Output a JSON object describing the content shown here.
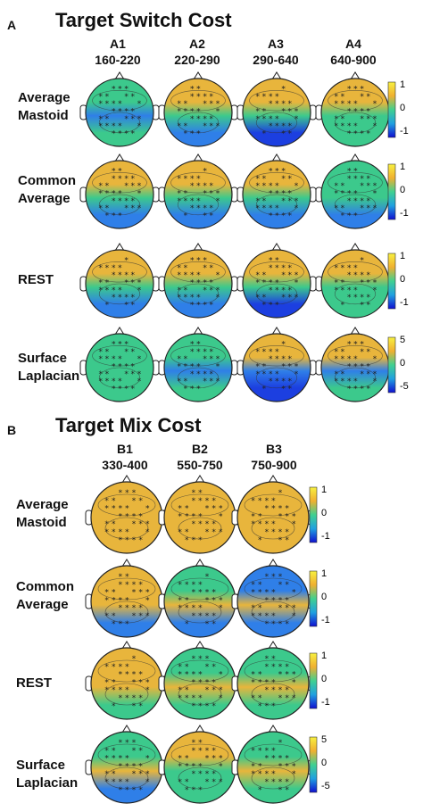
{
  "panels": [
    {
      "letter": "A",
      "title": "Target Switch Cost",
      "columns": [
        {
          "id": "A1",
          "range": "160-220"
        },
        {
          "id": "A2",
          "range": "220-290"
        },
        {
          "id": "A3",
          "range": "290-640"
        },
        {
          "id": "A4",
          "range": "640-900"
        }
      ],
      "rows": [
        {
          "label": [
            "Average",
            "Mastoid"
          ],
          "scale": {
            "max": "1",
            "mid": "0",
            "min": "-1"
          }
        },
        {
          "label": [
            "Common",
            "Average"
          ],
          "scale": {
            "max": "1",
            "mid": "0",
            "min": "-1"
          }
        },
        {
          "label": [
            "REST"
          ],
          "scale": {
            "max": "1",
            "mid": "0",
            "min": "-1"
          }
        },
        {
          "label": [
            "Surface",
            "Laplacian"
          ],
          "scale": {
            "max": "5",
            "mid": "0",
            "min": "-5"
          }
        }
      ]
    },
    {
      "letter": "B",
      "title": "Target Mix Cost",
      "columns": [
        {
          "id": "B1",
          "range": "330-400"
        },
        {
          "id": "B2",
          "range": "550-750"
        },
        {
          "id": "B3",
          "range": "750-900"
        }
      ],
      "rows": [
        {
          "label": [
            "Average",
            "Mastoid"
          ],
          "scale": {
            "max": "1",
            "mid": "0",
            "min": "-1"
          }
        },
        {
          "label": [
            "Common",
            "Average"
          ],
          "scale": {
            "max": "1",
            "mid": "0",
            "min": "-1"
          }
        },
        {
          "label": [
            "REST"
          ],
          "scale": {
            "max": "1",
            "mid": "0",
            "min": "-1"
          }
        },
        {
          "label": [
            "Surface",
            "Laplacian"
          ],
          "scale": {
            "max": "5",
            "mid": "0",
            "min": "-5"
          }
        }
      ]
    }
  ],
  "colors": {
    "positive": "#e8b53c",
    "neutral": "#3cc98c",
    "negative": "#1c3fe0",
    "colorbar": [
      "#f8f040",
      "#f0b030",
      "#40d090",
      "#20a0e0",
      "#1010d0"
    ]
  }
}
